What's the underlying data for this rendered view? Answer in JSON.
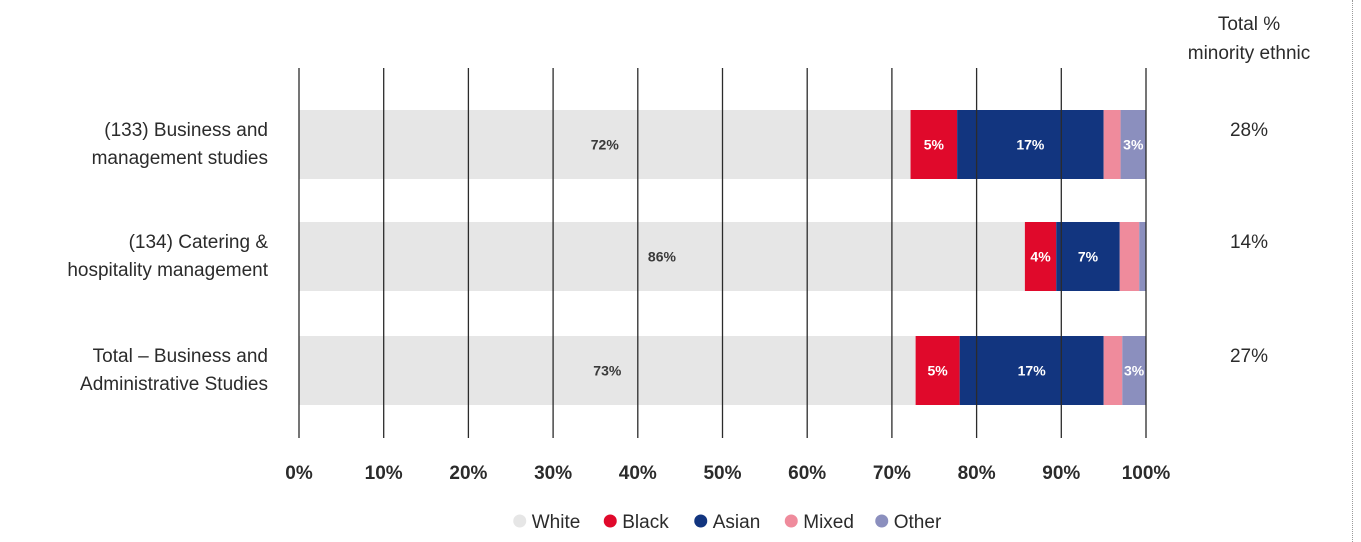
{
  "chart_data": {
    "type": "bar",
    "orientation": "horizontal",
    "stacked": true,
    "categories": [
      [
        "(133) Business and",
        "management studies"
      ],
      [
        "(134) Catering &",
        "hospitality management"
      ],
      [
        "Total – Business and",
        "Administrative Studies"
      ]
    ],
    "series": [
      {
        "name": "White",
        "color": "#e6e6e6",
        "values": [
          72.2,
          85.7,
          72.8
        ],
        "labels": [
          "72%",
          "86%",
          "73%"
        ]
      },
      {
        "name": "Black",
        "color": "#e0092b",
        "values": [
          5.5,
          3.7,
          5.2
        ],
        "labels": [
          "5%",
          "4%",
          "5%"
        ]
      },
      {
        "name": "Asian",
        "color": "#12357f",
        "values": [
          17.3,
          7.5,
          17.0
        ],
        "labels": [
          "17%",
          "7%",
          "17%"
        ]
      },
      {
        "name": "Mixed",
        "color": "#ef8b9c",
        "values": [
          2.0,
          2.3,
          2.2
        ],
        "labels": [
          "",
          "",
          ""
        ]
      },
      {
        "name": "Other",
        "color": "#8b8fbe",
        "values": [
          3.0,
          0.8,
          2.8
        ],
        "labels": [
          "3%",
          "",
          "3%"
        ]
      }
    ],
    "xlim": [
      0,
      100
    ],
    "xticks": [
      "0%",
      "10%",
      "20%",
      "30%",
      "40%",
      "50%",
      "60%",
      "70%",
      "80%",
      "90%",
      "100%"
    ],
    "grid": true,
    "legend_position": "bottom",
    "total_column": {
      "header": [
        "Total %",
        "minority ethnic"
      ],
      "values": [
        "28%",
        "14%",
        "27%"
      ]
    }
  }
}
